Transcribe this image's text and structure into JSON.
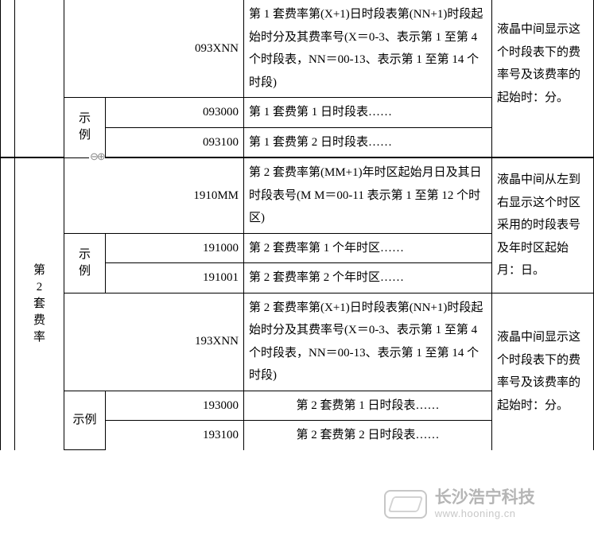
{
  "section1": {
    "exampleLabel": "示例",
    "r1": {
      "code": "093XNN",
      "desc": "第 1 套费率第(X+1)日时段表第(NN+1)时段起始时分及其费率号(X＝0-3、表示第 1 至第 4 个时段表，NN＝00-13、表示第 1 至第 14 个时段)",
      "note": "液晶中间显示这个时段表下的费率号及该费率的起始时：分。"
    },
    "r2": {
      "code": "093000",
      "desc": "第 1 套费第 1 日时段表……"
    },
    "r3": {
      "code": "093100",
      "desc": "第 1 套费第 2 日时段表……"
    }
  },
  "section2": {
    "groupLabel": "第2套费率",
    "exampleLabel1": "示例",
    "exampleLabel2": "示例",
    "r1": {
      "code": "1910MM",
      "desc": "第 2 套费率第(MM+1)年时区起始月日及其日时段表号(M M＝00-11 表示第 1 至第 12 个时区)",
      "note": "液晶中间从左到右显示这个时区采用的时段表号及年时区起始月：日。"
    },
    "r2": {
      "code": "191000",
      "desc": "第 2 套费率第 1 个年时区……"
    },
    "r3": {
      "code": "191001",
      "desc": "第 2 套费率第 2 个年时区……"
    },
    "r4": {
      "code": "193XNN",
      "desc": "第 2 套费率第(X+1)日时段表第(NN+1)时段起始时分及其费率号(X＝0-3、表示第 1 至第 4 个时段表，NN＝00-13、表示第 1 至第 14 个时段)",
      "note": "液晶中间显示这个时段表下的费率号及该费率的起始时：分。"
    },
    "r5": {
      "code": "193000",
      "desc": "第 2 套费第 1 日时段表……"
    },
    "r6": {
      "code": "193100",
      "desc": "第 2 套费第 2 日时段表……"
    }
  },
  "toggle": "⊖⊕",
  "watermark": {
    "cn": "长沙浩宁科技",
    "en": "www.hooning.cn"
  }
}
